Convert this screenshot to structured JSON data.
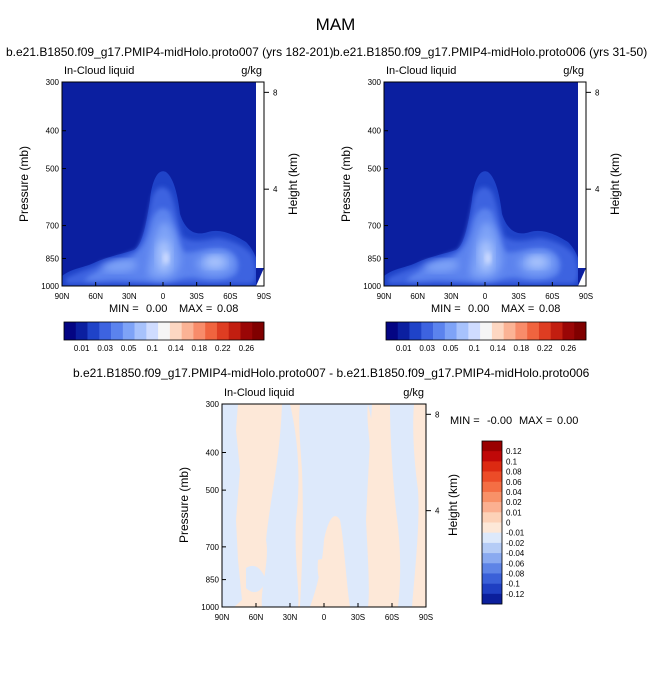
{
  "figure": {
    "season": "MAM",
    "diff_title": "b.e21.B1850.f09_g17.PMIP4-midHolo.proto007 - b.e21.B1850.f09_g17.PMIP4-midHolo.proto006"
  },
  "colors": {
    "background": "#ffffff",
    "deep_blue": "#081d8f",
    "light_blue": "#c6dbff",
    "cream": "#fde2cc"
  },
  "chart_data": [
    {
      "type": "heatmap",
      "title": "b.e21.B1850.f09_g17.PMIP4-midHolo.proto007 (yrs 182-201)",
      "left_label": "In-Cloud liquid",
      "right_label": "g/kg",
      "xlabel": "",
      "ylabel": "Pressure (mb)",
      "y2label": "Height (km)",
      "x_ticks": [
        "90N",
        "60N",
        "30N",
        "0",
        "30S",
        "60S",
        "90S"
      ],
      "y_ticks": [
        "300",
        "400",
        "500",
        "700",
        "850",
        "1000"
      ],
      "y2_ticks": [
        "8",
        "4"
      ],
      "ylim": [
        1000,
        300
      ],
      "stats": {
        "min_label": "MIN =",
        "min": "0.00",
        "max_label": "MAX =",
        "max": "0.08"
      },
      "colorbar": {
        "orientation": "horizontal",
        "levels": [
          "0.01",
          "0.03",
          "0.05",
          "0.1",
          "0.14",
          "0.18",
          "0.22",
          "0.26"
        ],
        "colors": [
          "#040583",
          "#0b1fa0",
          "#1f43c8",
          "#3d63e0",
          "#5b83ee",
          "#7ea3f7",
          "#a7c2fc",
          "#cfdcff",
          "#f5f5f5",
          "#fdd7c2",
          "#fbb395",
          "#f88c6a",
          "#f0643f",
          "#de3d22",
          "#c21e10",
          "#9a0606",
          "#800000"
        ]
      }
    },
    {
      "type": "heatmap",
      "title": "b.e21.B1850.f09_g17.PMIP4-midHolo.proto006 (yrs 31-50)",
      "left_label": "In-Cloud liquid",
      "right_label": "g/kg",
      "xlabel": "",
      "ylabel": "Pressure (mb)",
      "y2label": "Height (km)",
      "x_ticks": [
        "90N",
        "60N",
        "30N",
        "0",
        "30S",
        "60S",
        "90S"
      ],
      "y_ticks": [
        "300",
        "400",
        "500",
        "700",
        "850",
        "1000"
      ],
      "y2_ticks": [
        "8",
        "4"
      ],
      "ylim": [
        1000,
        300
      ],
      "stats": {
        "min_label": "MIN =",
        "min": "0.00",
        "max_label": "MAX =",
        "max": "0.08"
      },
      "colorbar": {
        "orientation": "horizontal",
        "levels": [
          "0.01",
          "0.03",
          "0.05",
          "0.1",
          "0.14",
          "0.18",
          "0.22",
          "0.26"
        ],
        "colors": [
          "#040583",
          "#0b1fa0",
          "#1f43c8",
          "#3d63e0",
          "#5b83ee",
          "#7ea3f7",
          "#a7c2fc",
          "#cfdcff",
          "#f5f5f5",
          "#fdd7c2",
          "#fbb395",
          "#f88c6a",
          "#f0643f",
          "#de3d22",
          "#c21e10",
          "#9a0606",
          "#800000"
        ]
      }
    },
    {
      "type": "heatmap",
      "title": "b.e21.B1850.f09_g17.PMIP4-midHolo.proto007 - b.e21.B1850.f09_g17.PMIP4-midHolo.proto006",
      "left_label": "In-Cloud liquid",
      "right_label": "g/kg",
      "xlabel": "",
      "ylabel": "Pressure (mb)",
      "y2label": "Height (km)",
      "x_ticks": [
        "90N",
        "60N",
        "30N",
        "0",
        "30S",
        "60S",
        "90S"
      ],
      "y_ticks": [
        "300",
        "400",
        "500",
        "700",
        "850",
        "1000"
      ],
      "y2_ticks": [
        "8",
        "4"
      ],
      "ylim": [
        1000,
        300
      ],
      "stats": {
        "min_label": "MIN =",
        "min": "-0.00",
        "max_label": "MAX =",
        "max": "0.00"
      },
      "colorbar": {
        "orientation": "vertical",
        "levels": [
          "0.12",
          "0.1",
          "0.08",
          "0.06",
          "0.04",
          "0.02",
          "0.01",
          "0",
          "-0.01",
          "-0.02",
          "-0.04",
          "-0.06",
          "-0.08",
          "-0.1",
          "-0.12"
        ],
        "colors": [
          "#9a0000",
          "#c00808",
          "#dc2a12",
          "#ec4c28",
          "#f46e44",
          "#f89168",
          "#fbb091",
          "#fdd2b8",
          "#fde8d8",
          "#dde9fb",
          "#b5ccf6",
          "#8aaaf0",
          "#5e84e6",
          "#3a60d8",
          "#1f3fc2",
          "#0b1f9c"
        ]
      }
    }
  ]
}
